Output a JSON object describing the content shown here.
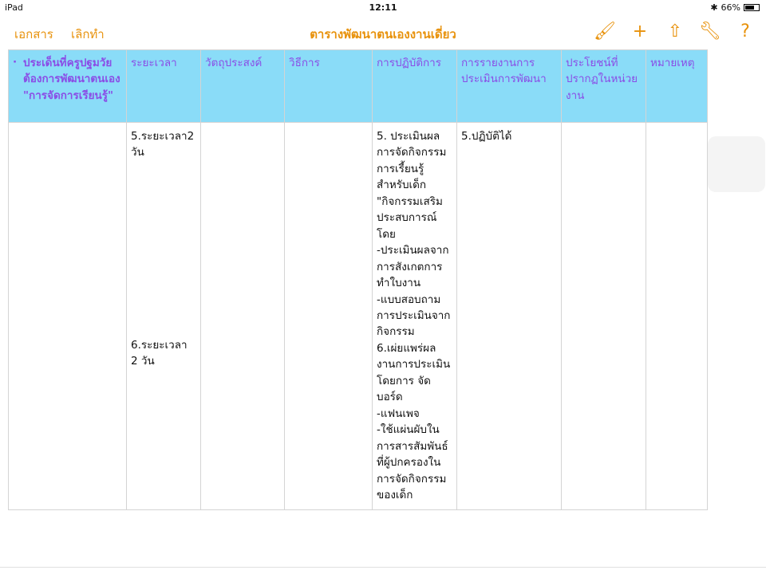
{
  "status_bar": {
    "device": "iPad",
    "time": "12:11",
    "battery": "66%",
    "battery_level": 0.66
  },
  "toolbar": {
    "documents_label": "เอกสาร",
    "undo_label": "เลิกทำ",
    "title": "ตารางพัฒนาตนเองงานเดี่ยว",
    "icons": [
      "paintbrush-icon",
      "plus-icon",
      "share-icon",
      "wrench-icon",
      "help-icon"
    ],
    "accent": "#e8920c"
  },
  "table": {
    "header_bg": "#8adcf8",
    "header_color": "#8a4de6",
    "headers": [
      "ประเด็นที่ครูปฐมวัยต้องการพัฒนาตนเอง \"การจัดการเรียนรู้\"",
      "ระยะเวลา",
      "วัตถุประสงค์",
      "วิธีการ",
      "การปฏิบัติการ",
      "การรายงานการประเมินการพัฒนา",
      "ประโยชน์ที่ปรากฏในหน่วยงาน",
      "หมายเหตุ"
    ],
    "row": {
      "col1": "",
      "duration_1": " 5.ระยะเวลา2\nวัน",
      "duration_2": " 6.ระยะเวลา\n2 วัน",
      "objective": "",
      "method": "",
      "operation": "5. ประเมินผล\nการจัดกิจกรรม\nการเรี้ยนรู้\nสำหรับเด็ก\n\"กิจกรรมเสริม\nประสบการณ์\nโดย\n-ประเมินผลจาก\nการสังเกตการ\nทำใบงาน\n-แบบสอบถาม\nการประเมินจาก\nกิจกรรม\n6.เผ่ยแพร่ผล\nงานการประเมิน\nโดยการ จัด\nบอร์ด\n-แฟนเพจ\n-ใช้แผ่นผับใน\nการสารสัมพันธ์\nที่ผู้ปกครองใน\nการจัดกิจกรรม\nของเด็ก",
      "report": "5.ปฏิบัติได้",
      "benefit": "",
      "note": ""
    }
  }
}
